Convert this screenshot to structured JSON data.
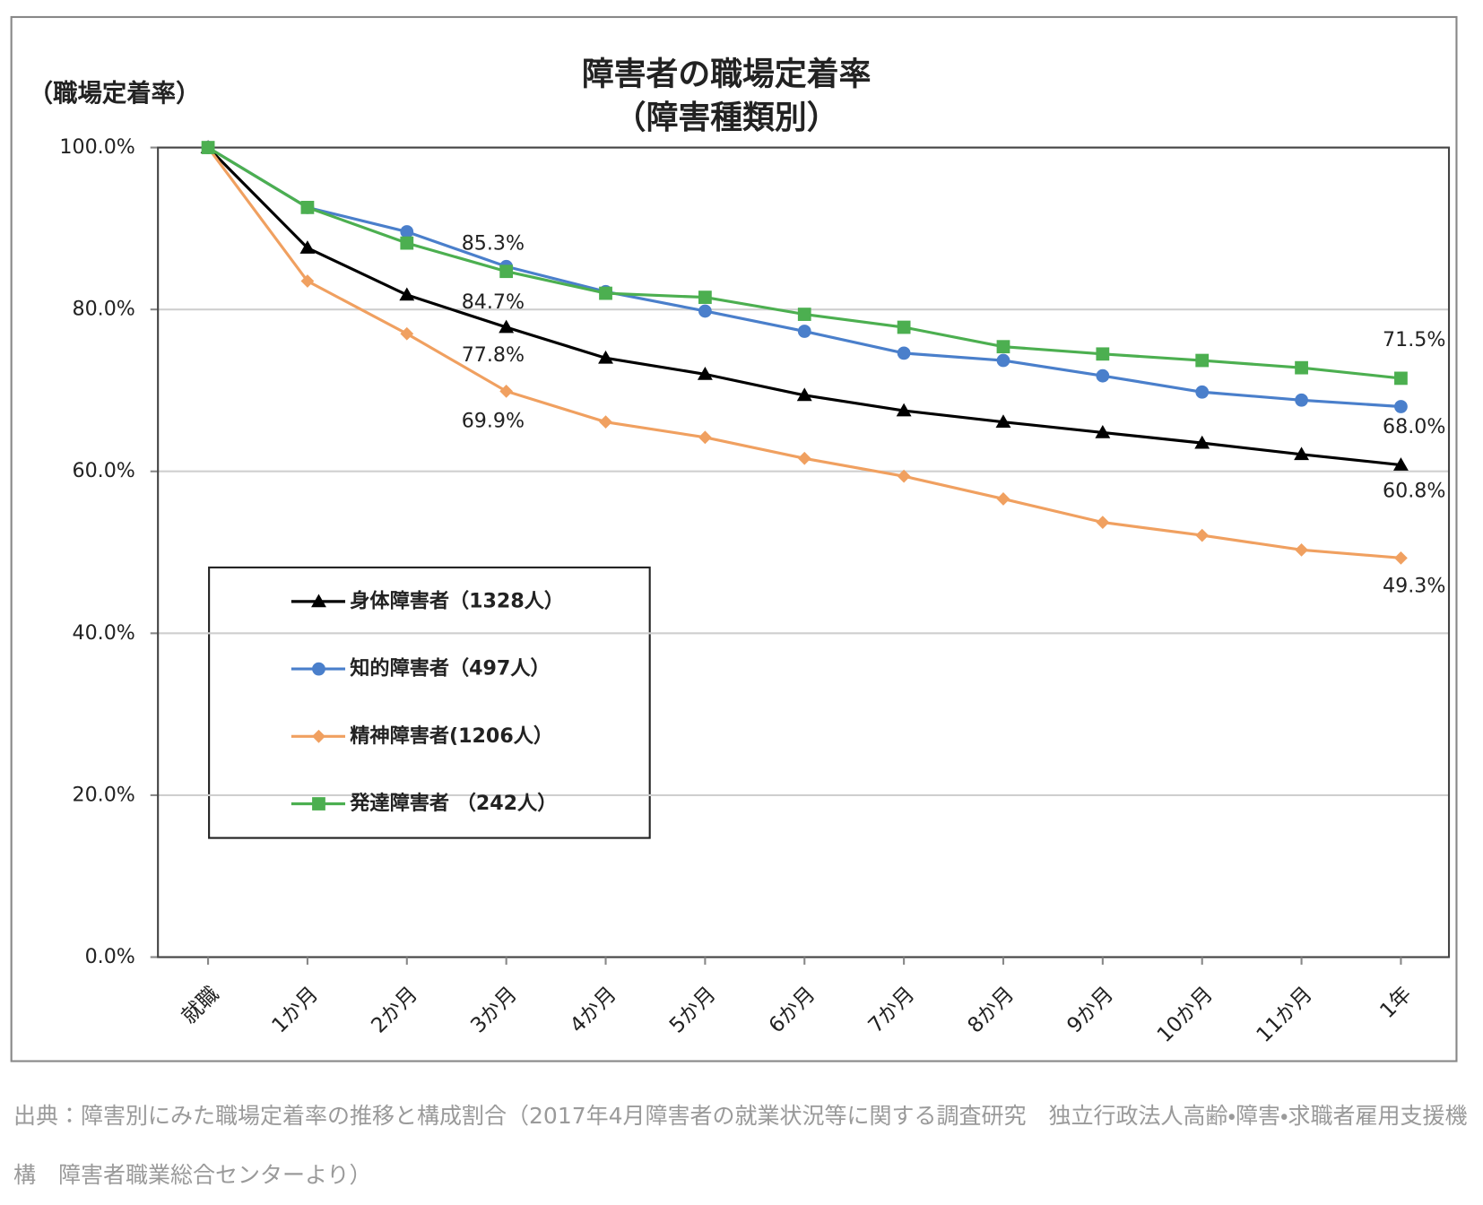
{
  "chart_data": {
    "type": "line",
    "title": "障害者の職場定着率",
    "subtitle": "（障害種類別）",
    "y_label": "（職場定着率）",
    "categories": [
      "就職",
      "1か月",
      "2か月",
      "3か月",
      "4か月",
      "5か月",
      "6か月",
      "7か月",
      "8か月",
      "9か月",
      "10か月",
      "11か月",
      "1年"
    ],
    "series": [
      {
        "name": "身体障害者（1328人）",
        "color": "#000000",
        "marker": "triangle",
        "values": [
          100,
          87.6,
          81.8,
          77.8,
          74.0,
          72.0,
          69.4,
          67.5,
          66.1,
          64.8,
          63.5,
          62.1,
          60.8
        ],
        "value_labels": [
          null,
          null,
          null,
          "77.8%",
          null,
          null,
          null,
          null,
          null,
          null,
          null,
          null,
          "60.8%"
        ]
      },
      {
        "name": "知的障害者（497人）",
        "color": "#4a7fcb",
        "marker": "circle",
        "values": [
          100,
          92.6,
          89.6,
          85.3,
          82.2,
          79.8,
          77.3,
          74.6,
          73.7,
          71.8,
          69.8,
          68.8,
          68.0
        ],
        "value_labels": [
          null,
          null,
          null,
          "85.3%",
          null,
          null,
          null,
          null,
          null,
          null,
          null,
          null,
          "68.0%"
        ]
      },
      {
        "name": "精神障害者(1206人）",
        "color": "#f0a060",
        "marker": "diamond",
        "values": [
          100,
          83.5,
          77.0,
          69.9,
          66.1,
          64.2,
          61.6,
          59.4,
          56.6,
          53.7,
          52.1,
          50.3,
          49.3
        ],
        "value_labels": [
          null,
          null,
          null,
          "69.9%",
          null,
          null,
          null,
          null,
          null,
          null,
          null,
          null,
          "49.3%"
        ]
      },
      {
        "name": "発達障害者 （242人）",
        "color": "#4caf50",
        "marker": "square",
        "values": [
          100,
          92.6,
          88.2,
          84.7,
          82.0,
          81.5,
          79.4,
          77.8,
          75.4,
          74.5,
          73.7,
          72.8,
          71.5
        ],
        "value_labels": [
          null,
          null,
          null,
          "84.7%",
          null,
          null,
          null,
          null,
          null,
          null,
          null,
          null,
          "71.5%"
        ]
      }
    ],
    "ylim": [
      0,
      100
    ],
    "yticks": [
      {
        "value": 0,
        "label": "0.0%"
      },
      {
        "value": 20,
        "label": "20.0%"
      },
      {
        "value": 40,
        "label": "40.0%"
      },
      {
        "value": 60,
        "label": "60.0%"
      },
      {
        "value": 80,
        "label": "80.0%"
      },
      {
        "value": 100,
        "label": "100.0%"
      }
    ],
    "grid": true
  },
  "source": "出典：障害別にみた職場定着率の推移と構成割合（2017年4月障害者の就業状況等に関する調査研究　独立行政法人高齢・障害・求職者雇用支援機構　障害者職業総合センターより）"
}
